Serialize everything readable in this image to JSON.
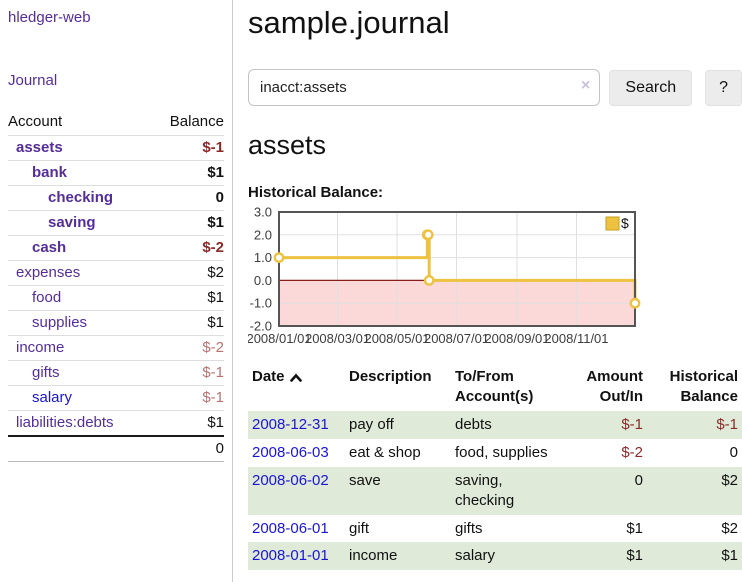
{
  "sidebar": {
    "brand": "hledger-web",
    "journal_link": "Journal",
    "accounts_header": {
      "account": "Account",
      "balance": "Balance"
    },
    "accounts": [
      {
        "name": "assets",
        "balance": "$-1",
        "indent": 1,
        "bold": true,
        "amount_style": "neg-strong"
      },
      {
        "name": "bank",
        "balance": "$1",
        "indent": 2,
        "bold": true,
        "amount_style": "pos"
      },
      {
        "name": "checking",
        "balance": "0",
        "indent": 3,
        "bold": true,
        "amount_style": "pos"
      },
      {
        "name": "saving",
        "balance": "$1",
        "indent": 3,
        "bold": true,
        "amount_style": "pos"
      },
      {
        "name": "cash",
        "balance": "$-2",
        "indent": 2,
        "bold": true,
        "amount_style": "neg-strong"
      },
      {
        "name": "expenses",
        "balance": "$2",
        "indent": 1,
        "bold": false,
        "amount_style": "pos"
      },
      {
        "name": "food",
        "balance": "$1",
        "indent": 2,
        "bold": false,
        "amount_style": "pos"
      },
      {
        "name": "supplies",
        "balance": "$1",
        "indent": 2,
        "bold": false,
        "amount_style": "pos"
      },
      {
        "name": "income",
        "balance": "$-2",
        "indent": 1,
        "bold": false,
        "amount_style": "neg-soft"
      },
      {
        "name": "gifts",
        "balance": "$-1",
        "indent": 2,
        "bold": false,
        "amount_style": "neg-soft"
      },
      {
        "name": "salary",
        "balance": "$-1",
        "indent": 2,
        "bold": false,
        "amount_style": "neg-soft",
        "link_style": "blue"
      },
      {
        "name": "liabilities:debts",
        "balance": "$1",
        "indent": 1,
        "bold": false,
        "amount_style": "pos"
      }
    ],
    "total": "0"
  },
  "header": {
    "title": "sample.journal"
  },
  "search": {
    "value": "inacct:assets",
    "clear_icon": "×",
    "button": "Search",
    "help": "?"
  },
  "account_page": {
    "heading": "assets",
    "chart_label": "Historical Balance:"
  },
  "chart_data": {
    "type": "line",
    "step": true,
    "title": "Historical Balance",
    "series": [
      {
        "name": "$",
        "color": "#edc240",
        "points": [
          [
            "2008-01-01",
            1
          ],
          [
            "2008-06-01",
            2
          ],
          [
            "2008-06-02",
            2
          ],
          [
            "2008-06-03",
            0
          ],
          [
            "2008-12-31",
            -1
          ]
        ]
      }
    ],
    "x_range": [
      "2008-01-01",
      "2008-12-31"
    ],
    "ylim": [
      -2,
      3
    ],
    "yticks": [
      {
        "v": 3,
        "label": "3.0"
      },
      {
        "v": 2,
        "label": "2.0"
      },
      {
        "v": 1,
        "label": "1.0"
      },
      {
        "v": 0,
        "label": "0.0"
      },
      {
        "v": -1,
        "label": "-1.0"
      },
      {
        "v": -2,
        "label": "-2.0"
      }
    ],
    "xticks": [
      {
        "d": "2008-01-01",
        "label": "2008/01/01"
      },
      {
        "d": "2008-03-01",
        "label": "2008/03/01"
      },
      {
        "d": "2008-05-01",
        "label": "2008/05/01"
      },
      {
        "d": "2008-07-01",
        "label": "2008/07/01"
      },
      {
        "d": "2008-09-01",
        "label": "2008/09/01"
      },
      {
        "d": "2008-11-01",
        "label": "2008/11/01"
      }
    ],
    "legend": {
      "label": "$",
      "position": "top-right"
    },
    "grid": true,
    "colors": {
      "line": "#edc240",
      "marker_fill": "#ffffff",
      "negative_region": "#fbd9d9",
      "zero_line": "#8b1c1c",
      "gridline": "#e0e0e0",
      "plot_border": "#555555",
      "axis_text": "#3c3c3c",
      "legend_border": "#c7a21f"
    }
  },
  "register": {
    "columns": [
      "Date",
      "Description",
      "To/From Account(s)",
      "Amount Out/In",
      "Historical Balance"
    ],
    "rows": [
      {
        "date": "2008-12-31",
        "description": "pay off",
        "accounts": "debts",
        "amount": "$-1",
        "balance": "$-1"
      },
      {
        "date": "2008-06-03",
        "description": "eat & shop",
        "accounts": "food, supplies",
        "amount": "$-2",
        "balance": "0"
      },
      {
        "date": "2008-06-02",
        "description": "save",
        "accounts": "saving, checking",
        "amount": "0",
        "balance": "$2"
      },
      {
        "date": "2008-06-01",
        "description": "gift",
        "accounts": "gifts",
        "amount": "$1",
        "balance": "$2"
      },
      {
        "date": "2008-01-01",
        "description": "income",
        "accounts": "salary",
        "amount": "$1",
        "balance": "$1"
      }
    ]
  }
}
